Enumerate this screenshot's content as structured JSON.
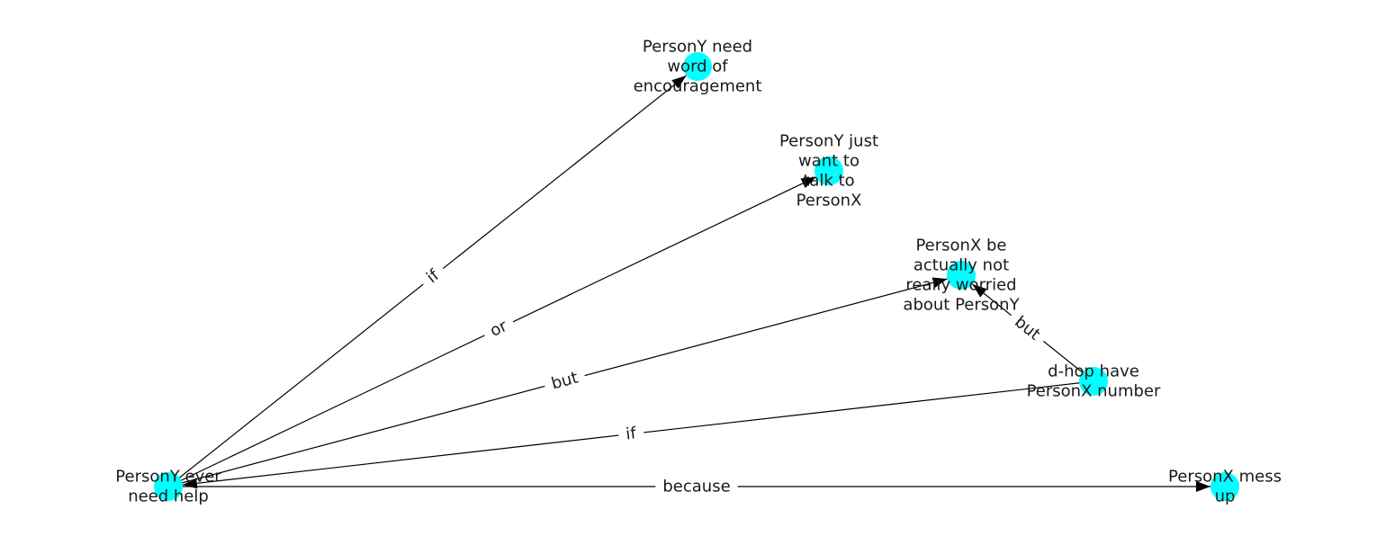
{
  "diagram": {
    "node_color": "#00ffff",
    "edge_color": "#000000",
    "nodes": [
      {
        "id": "n_help",
        "label": "PersonY ever need help"
      },
      {
        "id": "n_encourage",
        "label": "PersonY need word of encouragement"
      },
      {
        "id": "n_talk",
        "label": "PersonY just want to talk to PersonX"
      },
      {
        "id": "n_worried",
        "label": "PersonX be actually not really worried about PersonY"
      },
      {
        "id": "n_dhop",
        "label": "d-hop have PersonX number"
      },
      {
        "id": "n_mess",
        "label": "PersonX mess up"
      }
    ],
    "edges": [
      {
        "from": "n_help",
        "to": "n_encourage",
        "label": "if"
      },
      {
        "from": "n_help",
        "to": "n_talk",
        "label": "or"
      },
      {
        "from": "n_help",
        "to": "n_worried",
        "label": "but"
      },
      {
        "from": "n_dhop",
        "to": "n_help",
        "label": "if"
      },
      {
        "from": "n_dhop",
        "to": "n_worried",
        "label": "but"
      },
      {
        "from": "n_help",
        "to": "n_mess",
        "label": "because"
      }
    ]
  }
}
